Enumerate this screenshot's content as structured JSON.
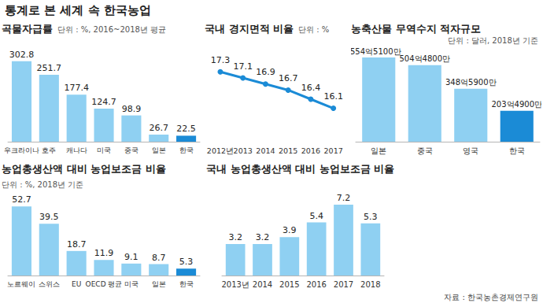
{
  "title": "통계로 본 세계 속 한국농업",
  "source": "자료 : 한국농촌경제연구원",
  "chart_data": [
    {
      "type": "bar",
      "title": "곡물자급률",
      "subtitle": "단위 : %, 2016~2018년 평균",
      "categories": [
        "우크라이나",
        "호주",
        "캐나다",
        "미국",
        "중국",
        "일본",
        "한국"
      ],
      "values": [
        302.8,
        251.7,
        177.4,
        124.7,
        98.9,
        26.7,
        22.5
      ],
      "colors": [
        "#8fd0f2",
        "#8fd0f2",
        "#8fd0f2",
        "#8fd0f2",
        "#8fd0f2",
        "#8fd0f2",
        "#1b8bd6"
      ],
      "ylim": [
        0,
        320
      ],
      "grid": false,
      "data_labels": true,
      "tick_labels": "x"
    },
    {
      "type": "line",
      "title": "국내 경지면적 비율",
      "subtitle": "단위 : %",
      "categories": [
        "2012년",
        "2013",
        "2014",
        "2015",
        "2016",
        "2017"
      ],
      "values": [
        17.3,
        17.1,
        16.9,
        16.7,
        16.4,
        16.1
      ],
      "color": "#1b8bd6",
      "marker": "circle",
      "ylim": [
        15,
        17.8
      ],
      "grid": false,
      "data_labels": true,
      "tick_labels": "x"
    },
    {
      "type": "bar",
      "title": "농축산물 무역수지 적자규모",
      "subtitle": "단위 : 달러, 2018년 기준",
      "categories": [
        "일본",
        "중국",
        "영국",
        "한국"
      ],
      "values": [
        55451000000,
        50448000000,
        34859000000,
        20349000000
      ],
      "value_labels": [
        "554억5100만",
        "504억4800만",
        "348억5900만",
        "203억4900만"
      ],
      "colors": [
        "#8fd0f2",
        "#8fd0f2",
        "#8fd0f2",
        "#1b8bd6"
      ],
      "ylim": [
        0,
        56000000000
      ],
      "grid": false,
      "data_labels": true,
      "tick_labels": "x"
    },
    {
      "type": "bar",
      "title": "농업총생산액 대비 농업보조금 비율",
      "subtitle": "단위 : %, 2018년 기준",
      "categories": [
        "노르웨이",
        "스위스",
        "EU",
        "OECD 평균",
        "미국",
        "일본",
        "한국"
      ],
      "values": [
        52.7,
        39.5,
        18.7,
        11.9,
        9.1,
        8.7,
        5.3
      ],
      "colors": [
        "#8fd0f2",
        "#8fd0f2",
        "#8fd0f2",
        "#8fd0f2",
        "#8fd0f2",
        "#8fd0f2",
        "#1b8bd6"
      ],
      "ylim": [
        0,
        60
      ],
      "grid": false,
      "data_labels": true,
      "tick_labels": "x"
    },
    {
      "type": "bar",
      "title": "국내 농업총생산액 대비 농업보조금 비율",
      "categories": [
        "2013년",
        "2014",
        "2015",
        "2016",
        "2017",
        "2018"
      ],
      "values": [
        3.2,
        3.2,
        3.9,
        5.4,
        7.2,
        5.3
      ],
      "color": "#8fd0f2",
      "ylim": [
        0,
        8
      ],
      "grid": false,
      "data_labels": true,
      "tick_labels": "x"
    }
  ]
}
